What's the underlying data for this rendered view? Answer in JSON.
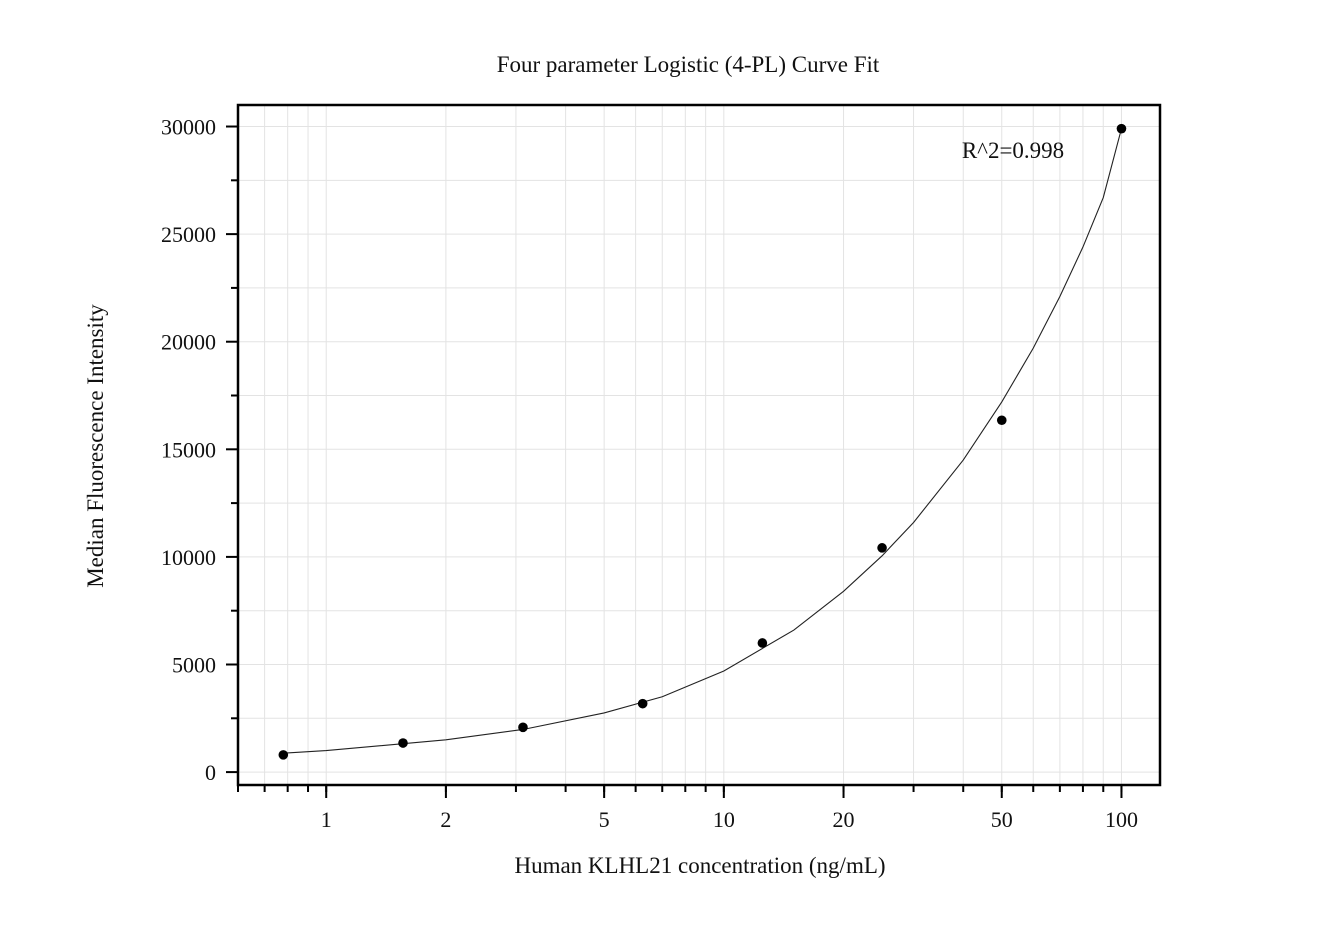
{
  "chart_data": {
    "type": "scatter",
    "title": "Four parameter Logistic (4-PL) Curve Fit",
    "xlabel": "Human KLHL21 concentration (ng/mL)",
    "ylabel": "Median Fluorescence Intensity",
    "x_scale": "log",
    "xlim": [
      0.6,
      125
    ],
    "ylim": [
      -600,
      31000
    ],
    "x_ticks": [
      1,
      2,
      5,
      10,
      20,
      50,
      100
    ],
    "x_tick_labels": [
      "1",
      "2",
      "5",
      "10",
      "20",
      "50",
      "100"
    ],
    "y_ticks": [
      0,
      5000,
      10000,
      15000,
      20000,
      25000,
      30000
    ],
    "y_tick_labels": [
      "0",
      "5000",
      "10000",
      "15000",
      "20000",
      "25000",
      "30000"
    ],
    "grid": true,
    "annotation": "R^2=0.998",
    "series": [
      {
        "type": "scatter",
        "x": [
          0.78,
          1.56,
          3.125,
          6.25,
          12.5,
          25,
          50,
          100
        ],
        "y": [
          800,
          1350,
          2080,
          3180,
          6000,
          10420,
          16350,
          29900
        ]
      },
      {
        "type": "line",
        "x": [
          0.78,
          1,
          2,
          3.125,
          5,
          7,
          10,
          15,
          20,
          25,
          30,
          40,
          50,
          60,
          70,
          80,
          90,
          100
        ],
        "y": [
          880,
          1000,
          1500,
          1980,
          2750,
          3500,
          4700,
          6600,
          8400,
          10050,
          11600,
          14500,
          17200,
          19700,
          22100,
          24400,
          26700,
          29900
        ]
      }
    ]
  }
}
